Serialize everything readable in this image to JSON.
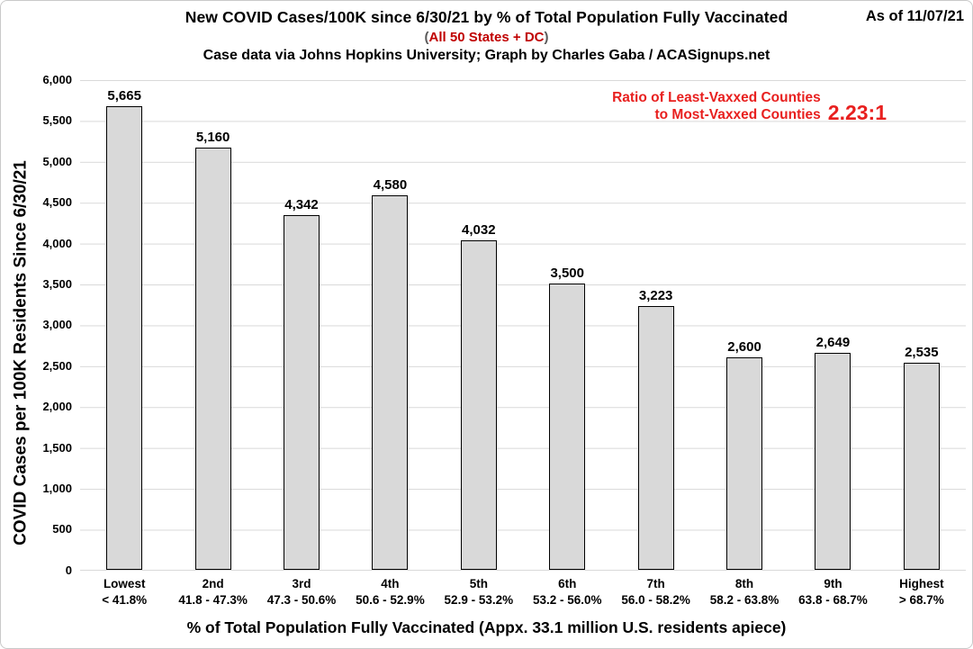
{
  "header": {
    "as_of": "As of 11/07/21"
  },
  "chart_data": {
    "type": "bar",
    "title": "New COVID Cases/100K since 6/30/21 by % of Total Population Fully Vaccinated",
    "subtitle": {
      "open": "(",
      "text": "All 50 States + DC",
      "close": ")"
    },
    "credit": "Case data via Johns Hopkins University; Graph by Charles Gaba / ACASignups.net",
    "annotation": {
      "line1": "Ratio of Least-Vaxxed Counties",
      "line2": "to Most-Vaxxed Counties",
      "ratio": "2.23:1"
    },
    "xlabel": "% of Total Population Fully Vaccinated (Appx. 33.1 million U.S. residents apiece)",
    "ylabel": "COVID Cases per 100K Residents Since 6/30/21",
    "ylim": [
      0,
      6000
    ],
    "ytick_step": 500,
    "ytick_labels": [
      "6,000",
      "5,500",
      "5,000",
      "4,500",
      "4,000",
      "3,500",
      "3,000",
      "2,500",
      "2,000",
      "1,500",
      "1,000",
      "500",
      "0"
    ],
    "grid": "horizontal",
    "legend": "none",
    "categories": [
      {
        "tier": "Lowest",
        "range": "< 41.8%"
      },
      {
        "tier": "2nd",
        "range": "41.8 - 47.3%"
      },
      {
        "tier": "3rd",
        "range": "47.3 - 50.6%"
      },
      {
        "tier": "4th",
        "range": "50.6 - 52.9%"
      },
      {
        "tier": "5th",
        "range": "52.9 - 53.2%"
      },
      {
        "tier": "6th",
        "range": "53.2 - 56.0%"
      },
      {
        "tier": "7th",
        "range": "56.0 - 58.2%"
      },
      {
        "tier": "8th",
        "range": "58.2 - 63.8%"
      },
      {
        "tier": "9th",
        "range": "63.8 - 68.7%"
      },
      {
        "tier": "Highest",
        "range": "> 68.7%"
      }
    ],
    "values": [
      5665,
      5160,
      4342,
      4580,
      4032,
      3500,
      3223,
      2600,
      2649,
      2535
    ],
    "values_formatted": [
      "5,665",
      "5,160",
      "4,342",
      "4,580",
      "4,032",
      "3,500",
      "3,223",
      "2,600",
      "2,649",
      "2,535"
    ],
    "colors": {
      "bar_fill": "#d9d9d9",
      "bar_border": "#000000",
      "grid": "#d9d9d9",
      "subtitle_red": "#c00000",
      "annotation_red": "#e8201f",
      "text": "#000000"
    }
  }
}
